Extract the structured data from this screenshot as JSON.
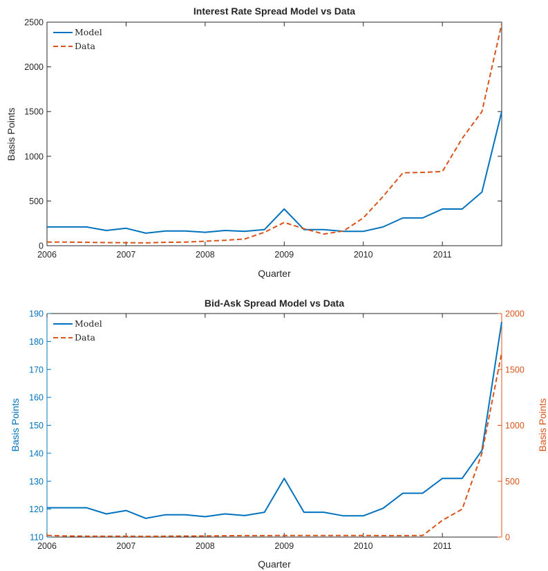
{
  "chart_data": [
    {
      "type": "line",
      "title": "Interest Rate Spread Model vs Data",
      "xlabel": "Quarter",
      "ylabel": "Basis Points",
      "xlim": [
        2006,
        2011.75
      ],
      "ylim": [
        0,
        2500
      ],
      "xticks": [
        "2006",
        "2007",
        "2008",
        "2009",
        "2010",
        "2011"
      ],
      "yticks": [
        "0",
        "500",
        "1000",
        "1500",
        "2000",
        "2500"
      ],
      "grid": false,
      "legend": "top-left",
      "x": [
        2006,
        2006.25,
        2006.5,
        2006.75,
        2007,
        2007.25,
        2007.5,
        2007.75,
        2008,
        2008.25,
        2008.5,
        2008.75,
        2009,
        2009.25,
        2009.5,
        2009.75,
        2010,
        2010.25,
        2010.5,
        2010.75,
        2011,
        2011.25,
        2011.5,
        2011.75
      ],
      "series": [
        {
          "name": "Model",
          "color": "#0072BD",
          "style": "solid",
          "values": [
            210,
            210,
            210,
            170,
            195,
            140,
            165,
            165,
            150,
            170,
            160,
            180,
            410,
            180,
            180,
            160,
            160,
            210,
            310,
            310,
            410,
            410,
            600,
            1500
          ]
        },
        {
          "name": "Data",
          "color": "#D95319",
          "style": "dashed",
          "values": [
            40,
            40,
            38,
            35,
            33,
            32,
            38,
            40,
            50,
            60,
            75,
            150,
            260,
            190,
            130,
            165,
            310,
            550,
            815,
            820,
            830,
            1200,
            1500,
            2480
          ]
        }
      ]
    },
    {
      "type": "line",
      "title": "Bid-Ask Spread Model vs Data",
      "xlabel": "Quarter",
      "ylabel": "Basis Points",
      "ylabel_right": "Basis Points",
      "xlim": [
        2006,
        2011.75
      ],
      "ylim": [
        110,
        190
      ],
      "ylim_right": [
        0,
        2000
      ],
      "xticks": [
        "2006",
        "2007",
        "2008",
        "2009",
        "2010",
        "2011"
      ],
      "yticks": [
        "110",
        "120",
        "130",
        "140",
        "150",
        "160",
        "170",
        "180",
        "190"
      ],
      "yticks_right": [
        "0",
        "500",
        "1000",
        "1500",
        "2000"
      ],
      "grid": false,
      "legend": "top-left",
      "x": [
        2006,
        2006.25,
        2006.5,
        2006.75,
        2007,
        2007.25,
        2007.5,
        2007.75,
        2008,
        2008.25,
        2008.5,
        2008.75,
        2009,
        2009.25,
        2009.5,
        2009.75,
        2010,
        2010.25,
        2010.5,
        2010.75,
        2011,
        2011.25,
        2011.5,
        2011.75
      ],
      "series": [
        {
          "name": "Model",
          "color": "#0072BD",
          "style": "solid",
          "axis": "left",
          "values": [
            120.5,
            120.5,
            120.5,
            118.3,
            119.5,
            116.7,
            118,
            118,
            117.3,
            118.3,
            117.7,
            118.9,
            131,
            118.9,
            118.9,
            117.6,
            117.6,
            120.3,
            125.7,
            125.7,
            131,
            131,
            141,
            187
          ]
        },
        {
          "name": "Data",
          "color": "#D95319",
          "style": "dashed",
          "axis": "right",
          "values": [
            15,
            10,
            8,
            8,
            8,
            7,
            8,
            9,
            10,
            12,
            13,
            13,
            14,
            14,
            14,
            14,
            14,
            13,
            13,
            14,
            150,
            250,
            750,
            1650
          ]
        }
      ]
    }
  ]
}
